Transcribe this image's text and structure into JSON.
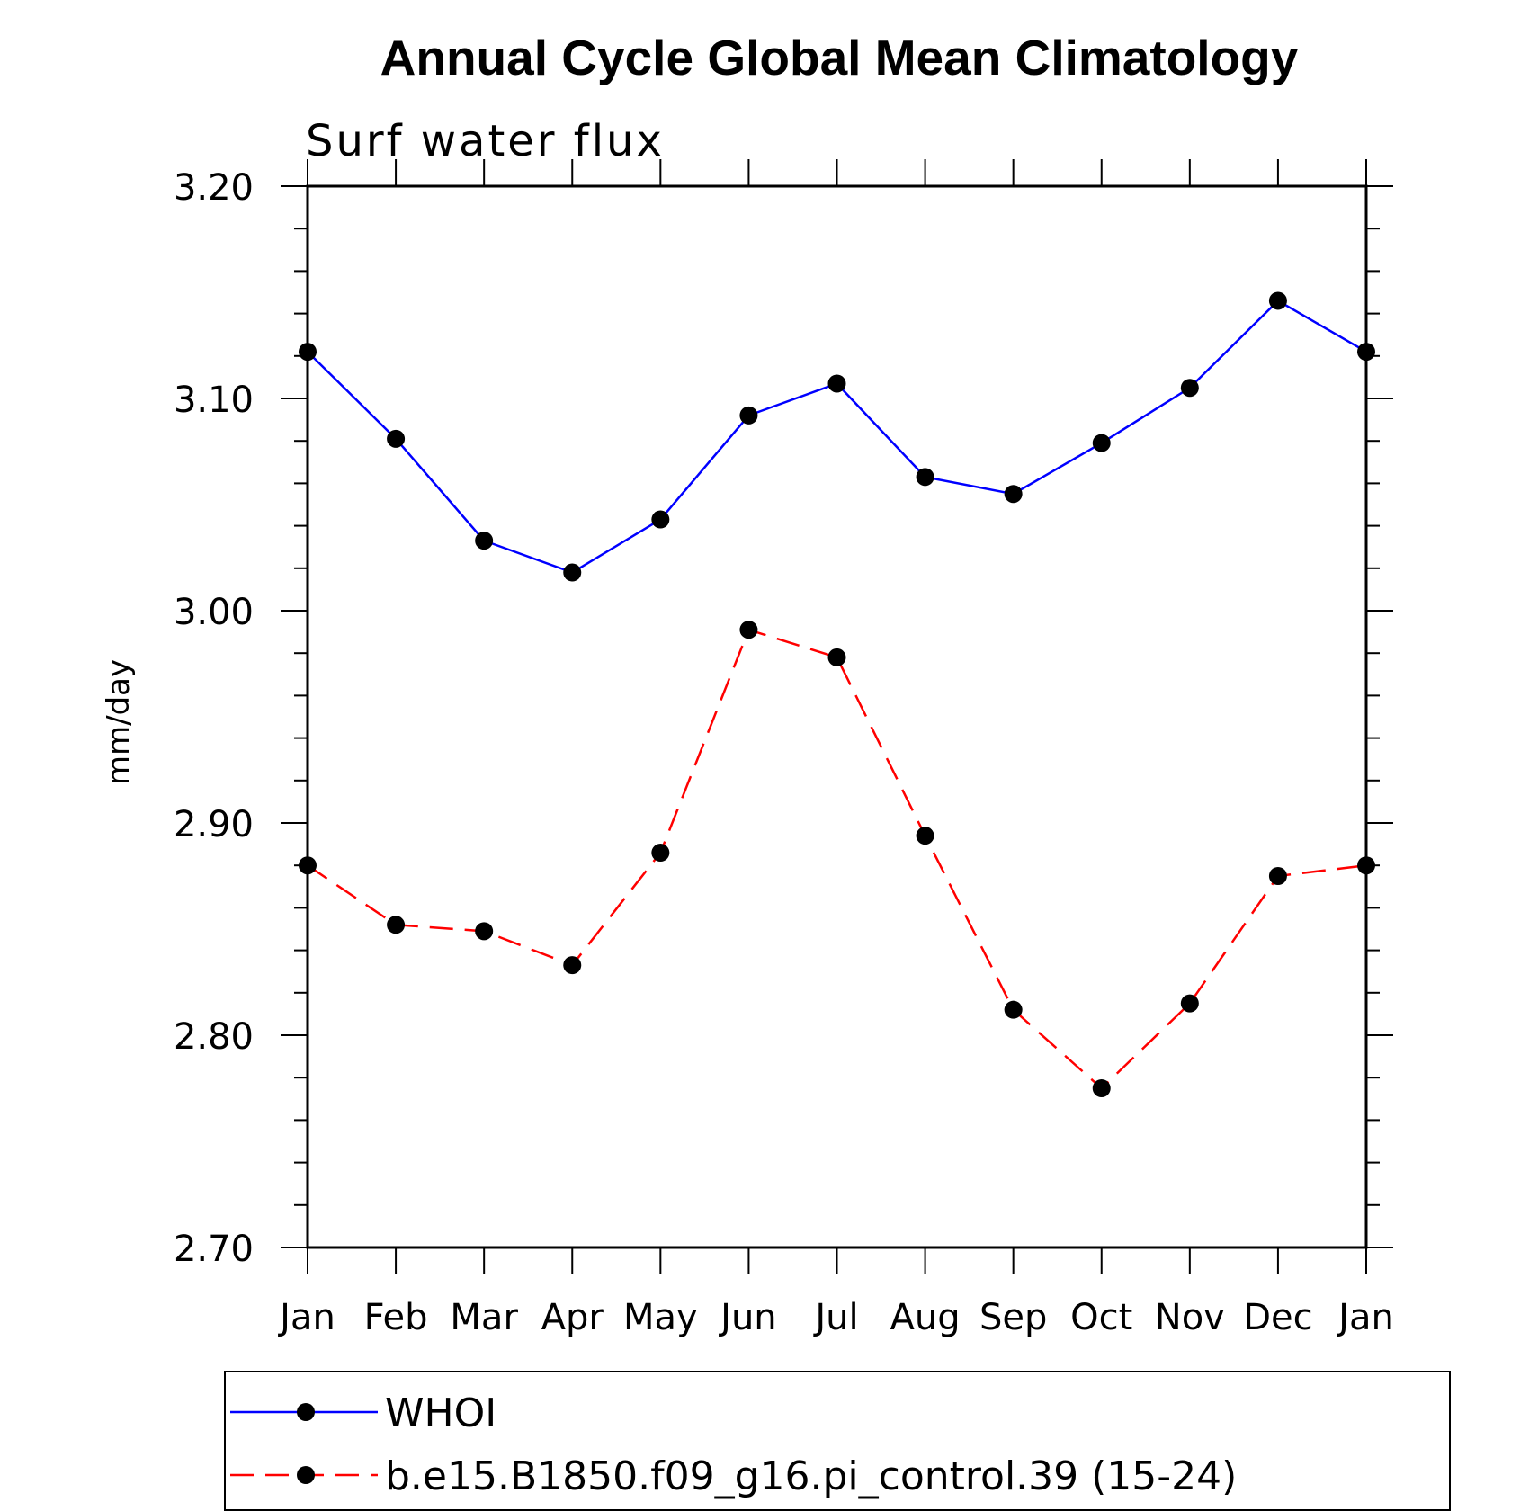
{
  "chart_data": {
    "type": "line",
    "title": "Annual Cycle Global Mean Climatology",
    "subtitle": "Surf water flux",
    "ylabel": "mm/day",
    "xlabel": "",
    "categories": [
      "Jan",
      "Feb",
      "Mar",
      "Apr",
      "May",
      "Jun",
      "Jul",
      "Aug",
      "Sep",
      "Oct",
      "Nov",
      "Dec",
      "Jan"
    ],
    "ylim": [
      2.7,
      3.2
    ],
    "yticks": [
      "3.20",
      "3.10",
      "3.00",
      "2.90",
      "2.80",
      "2.70"
    ],
    "grid": false,
    "legend_position": "bottom",
    "series": [
      {
        "name": "WHOI",
        "color": "#0000ff",
        "line_style": "solid",
        "marker": "filled-circle",
        "values": [
          3.122,
          3.081,
          3.033,
          3.018,
          3.043,
          3.092,
          3.107,
          3.063,
          3.055,
          3.079,
          3.105,
          3.146,
          3.122
        ]
      },
      {
        "name": "b.e15.B1850.f09_g16.pi_control.39 (15-24)",
        "color": "#ff0000",
        "line_style": "dashed",
        "marker": "filled-circle",
        "values": [
          2.88,
          2.852,
          2.849,
          2.833,
          2.886,
          2.991,
          2.978,
          2.894,
          2.812,
          2.775,
          2.815,
          2.875,
          2.88
        ]
      }
    ]
  }
}
